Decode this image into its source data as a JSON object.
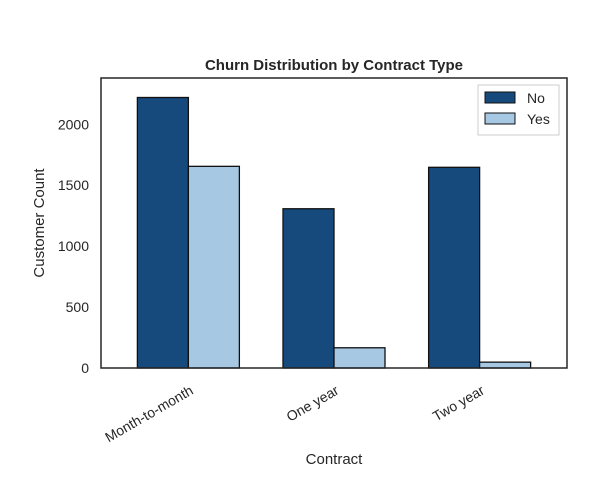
{
  "chart_data": {
    "type": "bar",
    "title": "Churn Distribution by  Contract Type",
    "xlabel": "Contract",
    "ylabel": "Customer Count",
    "categories": [
      "Month-to-month",
      "One year",
      "Two year"
    ],
    "series": [
      {
        "name": "No",
        "color": "#174a7c",
        "values": [
          2220,
          1307,
          1647
        ]
      },
      {
        "name": "Yes",
        "color": "#a6c8e3",
        "values": [
          1655,
          166,
          48
        ]
      }
    ],
    "ylim": [
      0,
      2380
    ],
    "yticks": [
      0,
      500,
      1000,
      1500,
      2000
    ],
    "grid": false,
    "legend_position": "top-right",
    "tick_rotation": 30
  }
}
